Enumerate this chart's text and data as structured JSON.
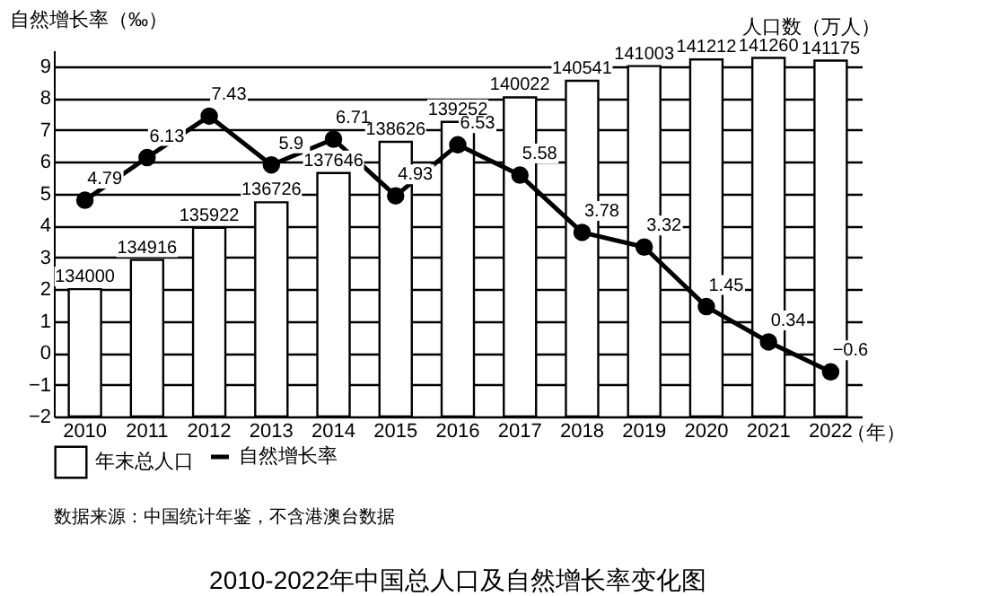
{
  "chart_data": {
    "type": "bar",
    "title": "2010-2022年中国总人口及自然增长率变化图",
    "ylabel": "自然增长率（‰）",
    "y2label": "人口数（万人）",
    "xlabel": "（年）",
    "annotations": [
      "数据来源：中国统计年鉴，不含港澳台数据"
    ],
    "categories": [
      "2010",
      "2011",
      "2012",
      "2013",
      "2014",
      "2015",
      "2016",
      "2017",
      "2018",
      "2019",
      "2020",
      "2021",
      "2022"
    ],
    "series": [
      {
        "name": "年末总人口",
        "axis": "y2",
        "color": "#ffffff",
        "values": [
          134000,
          134916,
          135922,
          136726,
          137646,
          138626,
          139252,
          140022,
          140541,
          141003,
          141212,
          141260,
          141175
        ]
      },
      {
        "name": "自然增长率",
        "type": "line",
        "color": "#000000",
        "values": [
          4.79,
          6.13,
          7.43,
          5.9,
          6.71,
          4.93,
          6.53,
          5.58,
          3.78,
          3.32,
          1.45,
          0.34,
          -0.6
        ]
      }
    ],
    "ylim": [
      -2,
      9.5
    ],
    "yticks": [
      -2,
      -1,
      0,
      1,
      2,
      3,
      4,
      5,
      6,
      7,
      8,
      9
    ],
    "y2lim": [
      130000,
      141500
    ],
    "data_labels": true,
    "grid": "y",
    "legend": "bottom",
    "marker": "circle",
    "line_style": "solid"
  }
}
